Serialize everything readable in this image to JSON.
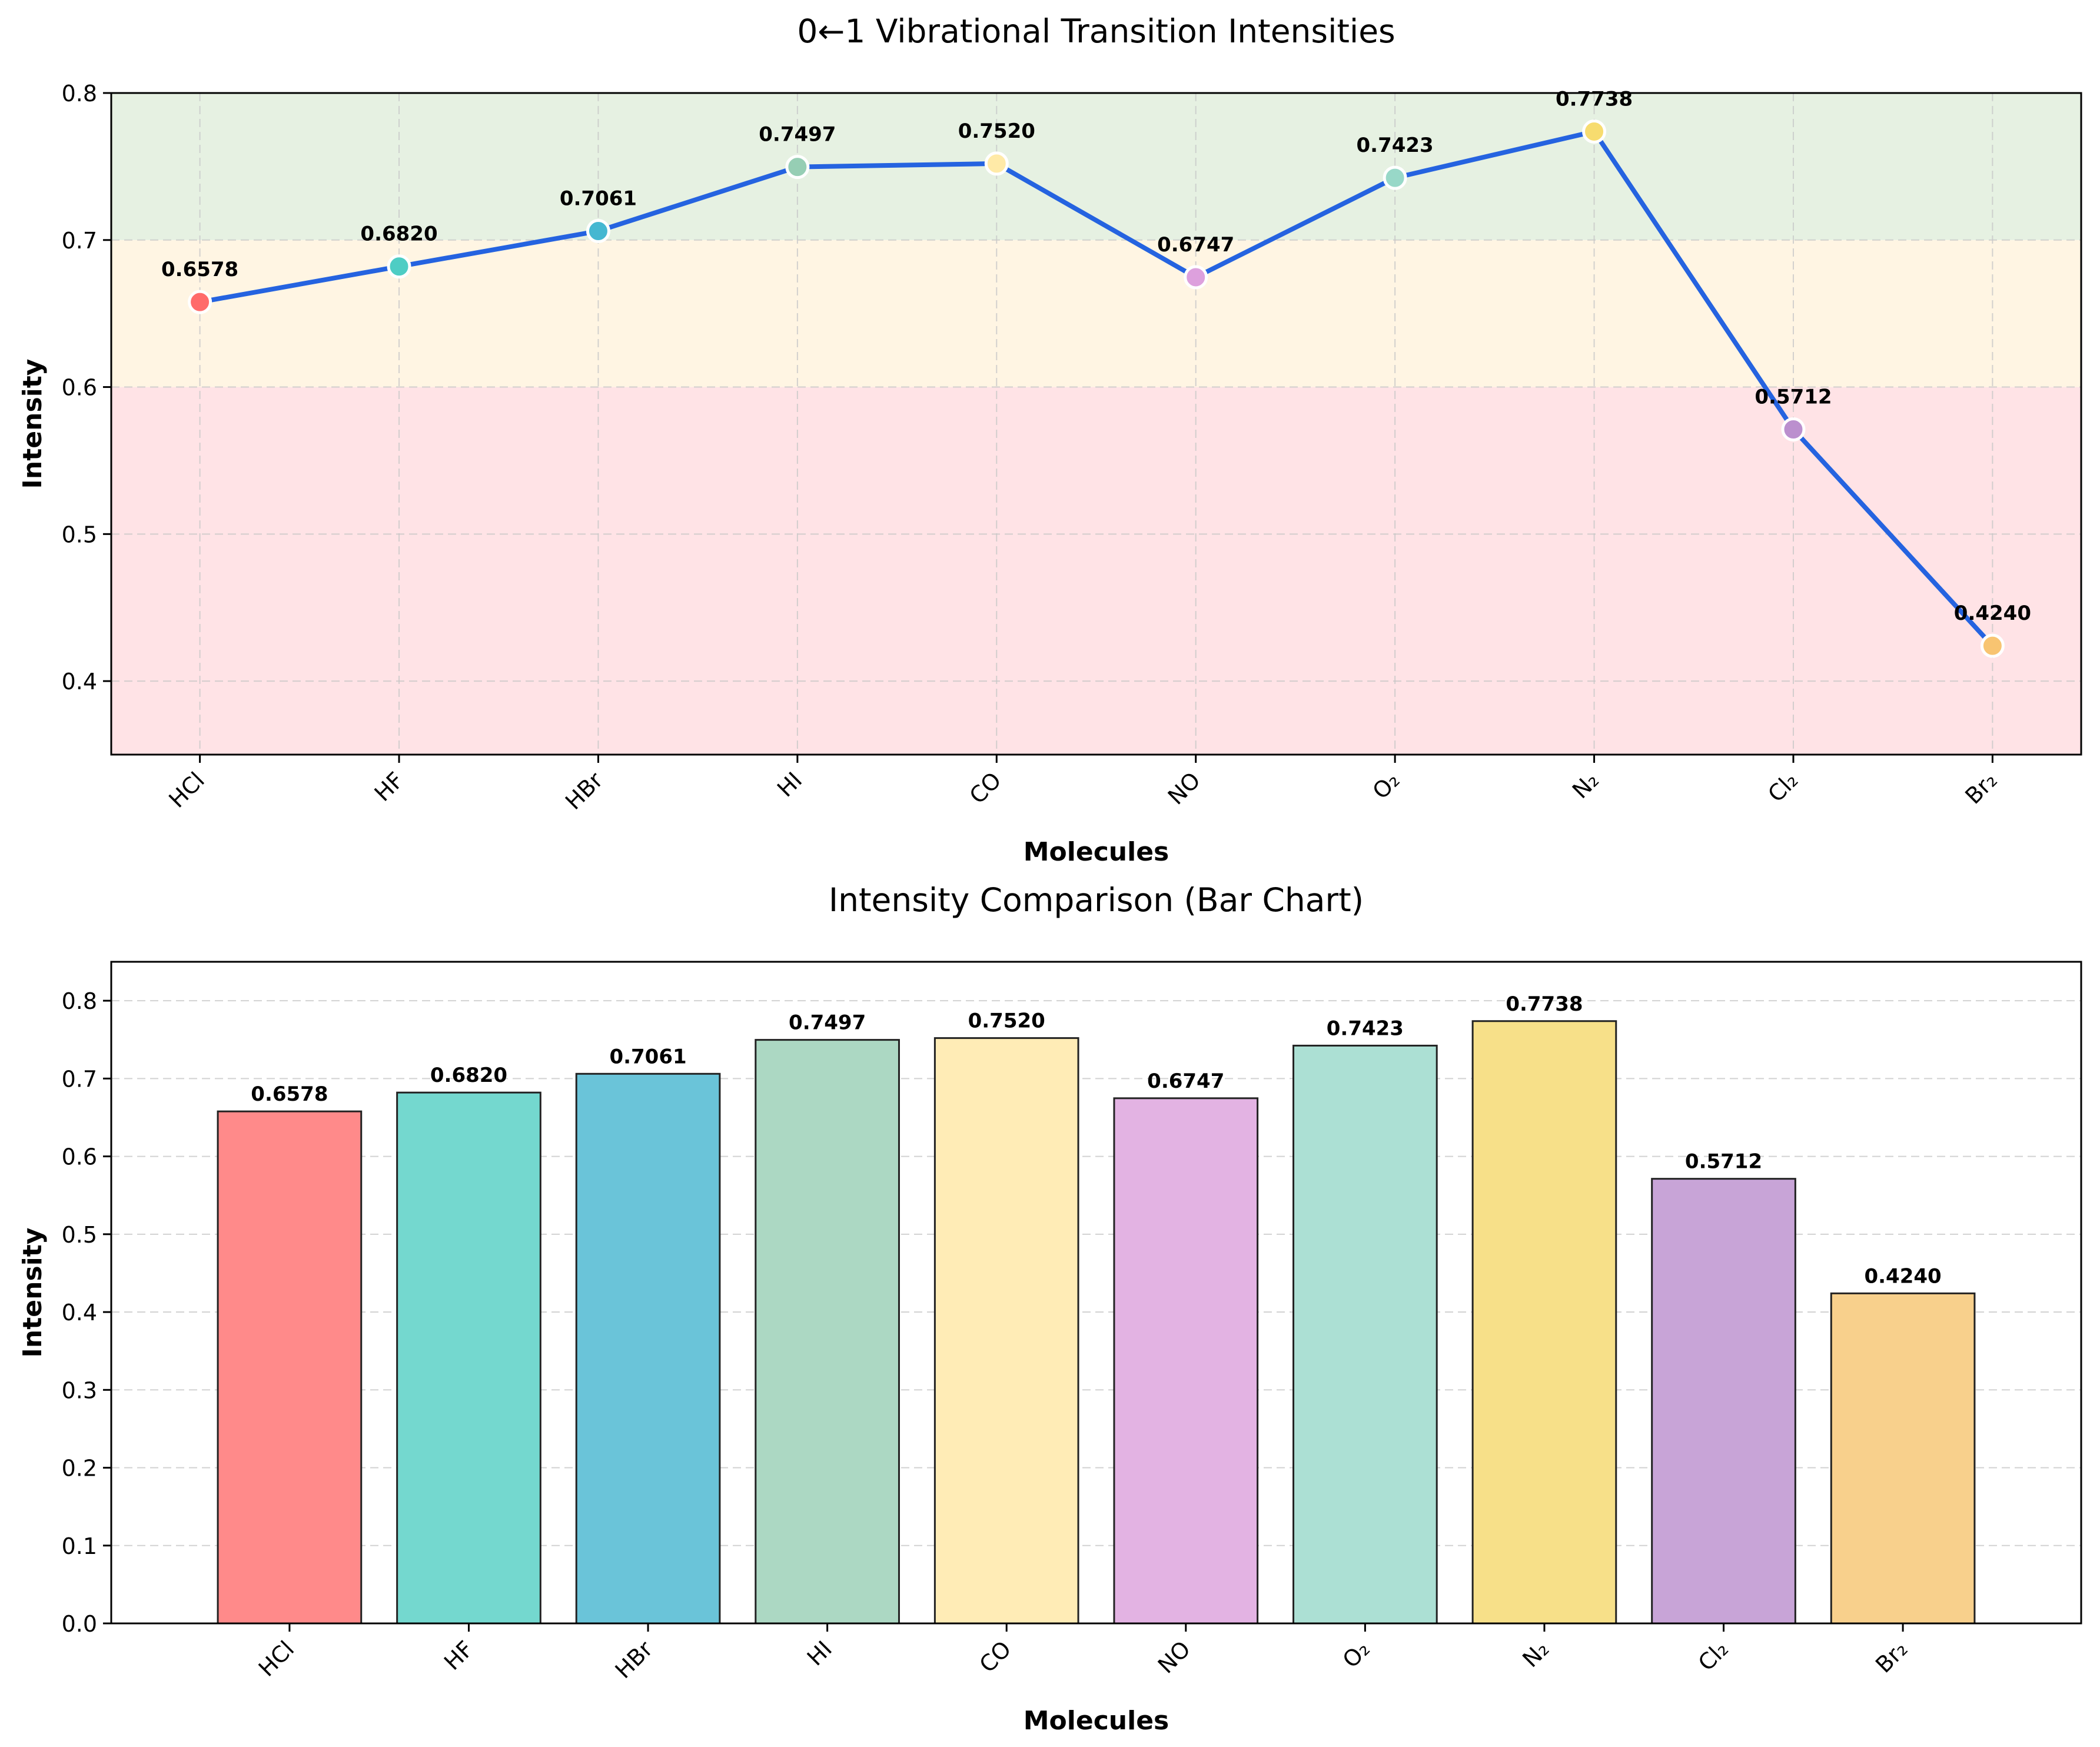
{
  "chart_data": [
    {
      "type": "line",
      "title": "0←1 Vibrational Transition Intensities",
      "xlabel": "Molecules",
      "ylabel": "Intensity",
      "categories": [
        "HCl",
        "HF",
        "HBr",
        "HI",
        "CO",
        "NO",
        "O₂",
        "N₂",
        "Cl₂",
        "Br₂"
      ],
      "values": [
        0.6578,
        0.682,
        0.7061,
        0.7497,
        0.752,
        0.6747,
        0.7423,
        0.7738,
        0.5712,
        0.424
      ],
      "value_labels": [
        "0.6578",
        "0.6820",
        "0.7061",
        "0.7497",
        "0.7520",
        "0.6747",
        "0.7423",
        "0.7738",
        "0.5712",
        "0.4240"
      ],
      "ylim": [
        0.35,
        0.8
      ],
      "yticks": [
        "0.4",
        "0.5",
        "0.6",
        "0.7",
        "0.8"
      ],
      "ytick_values": [
        0.4,
        0.5,
        0.6,
        0.7,
        0.8
      ],
      "bands": [
        {
          "from": 0.35,
          "to": 0.6,
          "color": "#ffe3e6"
        },
        {
          "from": 0.6,
          "to": 0.7,
          "color": "#fff5e3"
        },
        {
          "from": 0.7,
          "to": 0.8,
          "color": "#e6f1e2"
        }
      ],
      "line_color": "#2563e0",
      "point_colors": [
        "#ff6b6b",
        "#4ecdc4",
        "#45b7d1",
        "#96ceb4",
        "#ffeaa7",
        "#dda0dd",
        "#98d8c8",
        "#f7dc6f",
        "#bb8fce",
        "#f8c471"
      ],
      "grid": true
    },
    {
      "type": "bar",
      "title": "Intensity Comparison (Bar Chart)",
      "xlabel": "Molecules",
      "ylabel": "Intensity",
      "categories": [
        "HCl",
        "HF",
        "HBr",
        "HI",
        "CO",
        "NO",
        "O₂",
        "N₂",
        "Cl₂",
        "Br₂"
      ],
      "values": [
        0.6578,
        0.682,
        0.7061,
        0.7497,
        0.752,
        0.6747,
        0.7423,
        0.7738,
        0.5712,
        0.424
      ],
      "value_labels": [
        "0.6578",
        "0.6820",
        "0.7061",
        "0.7497",
        "0.7520",
        "0.6747",
        "0.7423",
        "0.7738",
        "0.5712",
        "0.4240"
      ],
      "ylim": [
        0,
        0.85
      ],
      "yticks": [
        "0.0",
        "0.1",
        "0.2",
        "0.3",
        "0.4",
        "0.5",
        "0.6",
        "0.7",
        "0.8"
      ],
      "ytick_values": [
        0.0,
        0.1,
        0.2,
        0.3,
        0.4,
        0.5,
        0.6,
        0.7,
        0.8
      ],
      "bar_colors": [
        "#ff8a8a",
        "#74d8cf",
        "#6ac4d9",
        "#acd8c3",
        "#ffecb6",
        "#e3b3e3",
        "#ace0d4",
        "#f7e089",
        "#c8a4d7",
        "#f8d08c"
      ],
      "grid": true
    }
  ]
}
